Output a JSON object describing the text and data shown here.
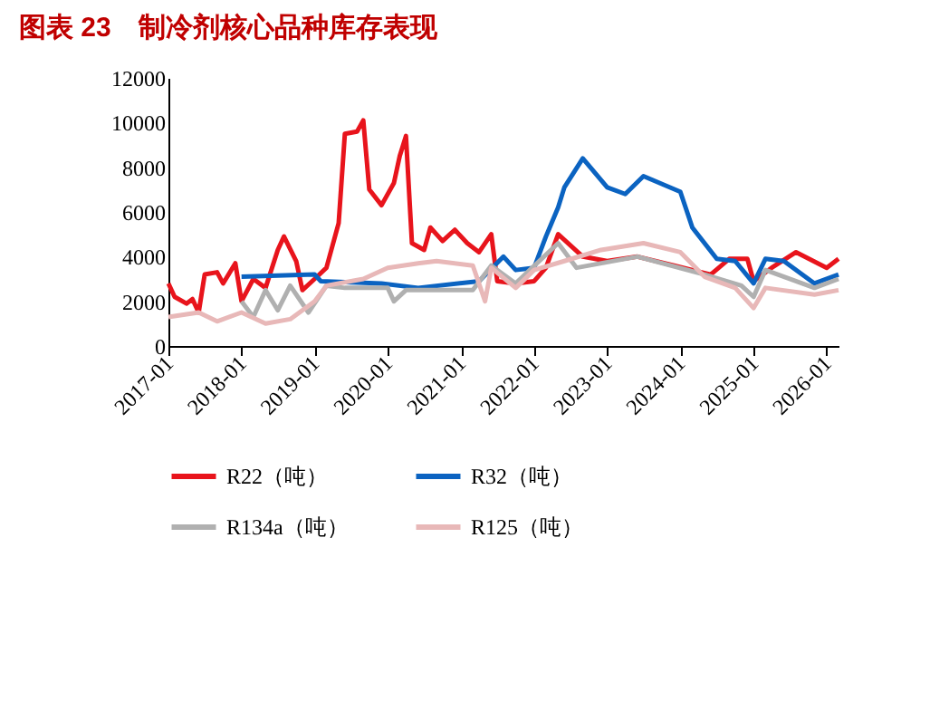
{
  "chart_data": {
    "type": "line",
    "title": "图表 23　制冷剂核心品种库存表现",
    "xlim": [
      "2017-01",
      "2026-03"
    ],
    "xticks": [
      "2017-01",
      "2018-01",
      "2019-01",
      "2020-01",
      "2021-01",
      "2022-01",
      "2023-01",
      "2024-01",
      "2025-01",
      "2026-01"
    ],
    "ylim": [
      0,
      12000
    ],
    "yticks": [
      0,
      2000,
      4000,
      6000,
      8000,
      10000,
      12000
    ],
    "grid": false,
    "legend": "bottom",
    "line_style": "solid",
    "marker": "none",
    "series": [
      {
        "name": "R22（吨）",
        "color": "#e8141c",
        "x": [
          "2017-01",
          "2017-02",
          "2017-04",
          "2017-05",
          "2017-06",
          "2017-07",
          "2017-09",
          "2017-10",
          "2017-12",
          "2018-01",
          "2018-03",
          "2018-05",
          "2018-07",
          "2018-08",
          "2018-10",
          "2018-11",
          "2019-01",
          "2019-03",
          "2019-05",
          "2019-06",
          "2019-08",
          "2019-09",
          "2019-10",
          "2019-12",
          "2020-02",
          "2020-03",
          "2020-04",
          "2020-05",
          "2020-07",
          "2020-08",
          "2020-10",
          "2020-12",
          "2021-02",
          "2021-04",
          "2021-06",
          "2021-07",
          "2021-10",
          "2022-01",
          "2022-03",
          "2022-05",
          "2022-09",
          "2023-01",
          "2023-06",
          "2023-12",
          "2024-06",
          "2024-09",
          "2024-12",
          "2025-01",
          "2025-04",
          "2025-08",
          "2026-01",
          "2026-03"
        ],
        "values": [
          2800,
          2200,
          1900,
          2100,
          1500,
          3200,
          3300,
          2800,
          3700,
          2000,
          3000,
          2600,
          4300,
          4900,
          3800,
          2500,
          3000,
          3500,
          5500,
          9500,
          9600,
          10100,
          7000,
          6300,
          7300,
          8500,
          9400,
          4600,
          4300,
          5300,
          4700,
          5200,
          4600,
          4200,
          5000,
          2900,
          2800,
          2900,
          3500,
          5000,
          4000,
          3800,
          4000,
          3600,
          3200,
          3900,
          3900,
          2900,
          3500,
          4200,
          3500,
          3900
        ]
      },
      {
        "name": "R32（吨）",
        "color": "#0b63c1",
        "x": [
          "2018-01",
          "2019-01",
          "2019-02",
          "2019-12",
          "2020-06",
          "2021-04",
          "2021-08",
          "2021-10",
          "2022-01",
          "2022-03",
          "2022-05",
          "2022-06",
          "2022-09",
          "2023-01",
          "2023-04",
          "2023-07",
          "2024-01",
          "2024-03",
          "2024-07",
          "2024-10",
          "2025-01",
          "2025-03",
          "2025-06",
          "2025-11",
          "2026-03"
        ],
        "values": [
          3100,
          3200,
          2900,
          2800,
          2600,
          2900,
          4000,
          3400,
          3500,
          4900,
          6200,
          7100,
          8400,
          7100,
          6800,
          7600,
          6900,
          5300,
          3900,
          3800,
          2800,
          3900,
          3800,
          2800,
          3200
        ]
      },
      {
        "name": "R134a（吨）",
        "color": "#b0b0b0",
        "x": [
          "2018-01",
          "2018-03",
          "2018-05",
          "2018-07",
          "2018-09",
          "2018-12",
          "2019-03",
          "2019-06",
          "2020-01",
          "2020-02",
          "2020-04",
          "2021-03",
          "2021-06",
          "2021-10",
          "2022-05",
          "2022-08",
          "2023-06",
          "2024-05",
          "2024-11",
          "2025-01",
          "2025-03",
          "2025-11",
          "2026-03"
        ],
        "values": [
          2000,
          1300,
          2500,
          1600,
          2700,
          1500,
          2700,
          2600,
          2600,
          2000,
          2500,
          2500,
          3600,
          2800,
          4600,
          3500,
          4000,
          3200,
          2700,
          2200,
          3400,
          2600,
          3000
        ]
      },
      {
        "name": "R125（吨）",
        "color": "#e8b8b8",
        "x": [
          "2017-01",
          "2017-06",
          "2017-09",
          "2018-01",
          "2018-05",
          "2018-09",
          "2019-01",
          "2019-03",
          "2019-09",
          "2020-01",
          "2020-06",
          "2020-09",
          "2021-03",
          "2021-05",
          "2021-06",
          "2021-10",
          "2022-01",
          "2022-06",
          "2022-12",
          "2023-07",
          "2024-01",
          "2024-05",
          "2024-10",
          "2025-01",
          "2025-03",
          "2025-11",
          "2026-03"
        ],
        "values": [
          1300,
          1500,
          1100,
          1500,
          1000,
          1200,
          2000,
          2700,
          3000,
          3500,
          3700,
          3800,
          3600,
          2000,
          3500,
          2600,
          3400,
          3800,
          4300,
          4600,
          4200,
          3100,
          2600,
          1700,
          2600,
          2300,
          2500
        ]
      }
    ]
  }
}
